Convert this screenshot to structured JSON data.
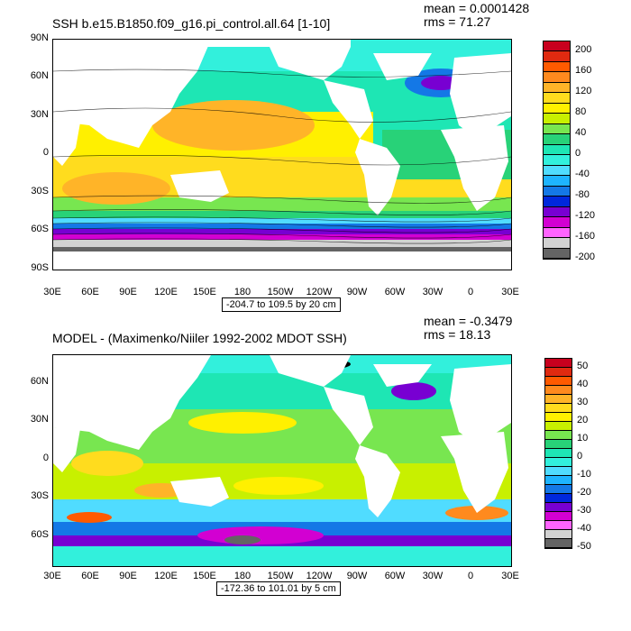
{
  "panel1": {
    "title": "SSH b.e15.B1850.f09_g16.pi_control.all.64 [1-10]",
    "mean": "mean = 0.0001428",
    "rms": "rms = 71.27",
    "range": "-204.7 to 109.5 by 20 cm",
    "lat_labels": [
      "90N",
      "60N",
      "30N",
      "0",
      "30S",
      "60S",
      "90S"
    ],
    "lon_labels": [
      "30E",
      "60E",
      "90E",
      "120E",
      "150E",
      "180",
      "150W",
      "120W",
      "90W",
      "60W",
      "30W",
      "0",
      "30E"
    ],
    "colorbar_labels": [
      "200",
      "160",
      "120",
      "80",
      "40",
      "0",
      "-40",
      "-80",
      "-120",
      "-160",
      "-200"
    ],
    "colorbar_colors": [
      "#c8001e",
      "#e02a10",
      "#ff5a00",
      "#ff8a1e",
      "#ffb428",
      "#ffdc1e",
      "#fff000",
      "#c8f000",
      "#78e650",
      "#28d278",
      "#1ee6b4",
      "#32f0dc",
      "#50dcff",
      "#1eb4ff",
      "#1478e6",
      "#0028dc",
      "#7800d2",
      "#d200d2",
      "#ff64ff",
      "#d2d2d2",
      "#646464"
    ]
  },
  "panel2": {
    "title": "MODEL - (Maximenko/Niiler 1992-2002 MDOT SSH)",
    "mean": "mean = -0.3479",
    "rms": "rms = 18.13",
    "range": "-172.36 to 101.01 by 5 cm",
    "lat_labels": [
      "60N",
      "30N",
      "0",
      "30S",
      "60S"
    ],
    "lon_labels": [
      "30E",
      "60E",
      "90E",
      "120E",
      "150E",
      "180",
      "150W",
      "120W",
      "90W",
      "60W",
      "30W",
      "0",
      "30E"
    ],
    "colorbar_labels": [
      "50",
      "40",
      "30",
      "20",
      "10",
      "0",
      "-10",
      "-20",
      "-30",
      "-40",
      "-50"
    ],
    "colorbar_colors": [
      "#c8001e",
      "#e02a10",
      "#ff5a00",
      "#ff8a1e",
      "#ffb428",
      "#ffdc1e",
      "#fff000",
      "#c8f000",
      "#78e650",
      "#28d278",
      "#1ee6b4",
      "#32f0dc",
      "#50dcff",
      "#1eb4ff",
      "#1478e6",
      "#0028dc",
      "#7800d2",
      "#d200d2",
      "#ff64ff",
      "#d2d2d2",
      "#646464"
    ]
  }
}
